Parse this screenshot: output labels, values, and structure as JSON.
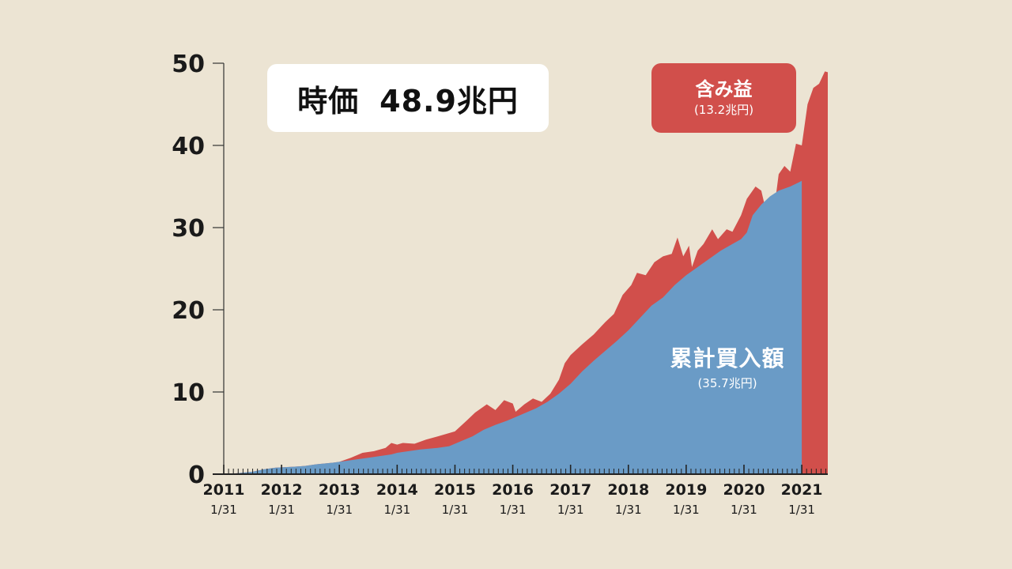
{
  "headline": {
    "label": "時価",
    "value": "48.9兆円"
  },
  "gain_box": {
    "label": "含み益",
    "value": "(13.2兆円)"
  },
  "cumulative_label": {
    "label": "累計買入額",
    "value": "(35.7兆円)"
  },
  "colors": {
    "background": "#ece4d3",
    "purchase": "#6a9bc6",
    "gain": "#d14f4b",
    "axis": "#333333"
  },
  "chart_data": {
    "type": "area",
    "title": "時価 48.9兆円",
    "xlabel": "",
    "ylabel": "",
    "ylim": [
      0,
      50
    ],
    "y_ticks": [
      "0",
      "10",
      "20",
      "30",
      "40",
      "50"
    ],
    "x_years": [
      "2011",
      "2012",
      "2013",
      "2014",
      "2015",
      "2016",
      "2017",
      "2018",
      "2019",
      "2020",
      "2021"
    ],
    "x_day_label": "1/31",
    "x_start_year": 2011,
    "x_end_year": 2021,
    "series": [
      {
        "name": "累計買入額",
        "total": "35.7兆円",
        "color": "#6a9bc6",
        "points": [
          [
            2011.0,
            0
          ],
          [
            2011.2,
            0.1
          ],
          [
            2011.5,
            0.3
          ],
          [
            2011.7,
            0.6
          ],
          [
            2011.9,
            0.8
          ],
          [
            2012.2,
            0.9
          ],
          [
            2012.4,
            1.0
          ],
          [
            2012.6,
            1.2
          ],
          [
            2012.9,
            1.4
          ],
          [
            2013.1,
            1.6
          ],
          [
            2013.3,
            1.8
          ],
          [
            2013.5,
            2.0
          ],
          [
            2013.7,
            2.2
          ],
          [
            2013.9,
            2.4
          ],
          [
            2014.0,
            2.6
          ],
          [
            2014.2,
            2.8
          ],
          [
            2014.4,
            3.0
          ],
          [
            2014.7,
            3.2
          ],
          [
            2014.9,
            3.4
          ],
          [
            2015.1,
            4.0
          ],
          [
            2015.3,
            4.6
          ],
          [
            2015.5,
            5.4
          ],
          [
            2015.7,
            6.0
          ],
          [
            2015.9,
            6.5
          ],
          [
            2016.0,
            6.8
          ],
          [
            2016.2,
            7.4
          ],
          [
            2016.4,
            8.0
          ],
          [
            2016.6,
            8.8
          ],
          [
            2016.8,
            9.8
          ],
          [
            2017.0,
            11.0
          ],
          [
            2017.2,
            12.5
          ],
          [
            2017.4,
            13.8
          ],
          [
            2017.6,
            15.0
          ],
          [
            2017.8,
            16.2
          ],
          [
            2018.0,
            17.5
          ],
          [
            2018.2,
            19.0
          ],
          [
            2018.4,
            20.5
          ],
          [
            2018.6,
            21.5
          ],
          [
            2018.8,
            23.0
          ],
          [
            2019.0,
            24.2
          ],
          [
            2019.2,
            25.2
          ],
          [
            2019.4,
            26.2
          ],
          [
            2019.6,
            27.2
          ],
          [
            2019.8,
            28.0
          ],
          [
            2019.95,
            28.6
          ],
          [
            2020.05,
            29.4
          ],
          [
            2020.15,
            31.5
          ],
          [
            2020.3,
            32.8
          ],
          [
            2020.45,
            33.8
          ],
          [
            2020.6,
            34.5
          ],
          [
            2020.8,
            35.0
          ],
          [
            2020.95,
            35.5
          ],
          [
            2021.0,
            35.7
          ]
        ]
      },
      {
        "name": "時価",
        "total": "48.9兆円",
        "color": "#d14f4b",
        "points": [
          [
            2011.0,
            0
          ],
          [
            2011.2,
            0.1
          ],
          [
            2011.5,
            0.3
          ],
          [
            2011.7,
            0.6
          ],
          [
            2011.9,
            0.8
          ],
          [
            2012.2,
            0.9
          ],
          [
            2012.4,
            1.0
          ],
          [
            2012.6,
            1.2
          ],
          [
            2012.9,
            1.4
          ],
          [
            2013.0,
            1.5
          ],
          [
            2013.2,
            2.0
          ],
          [
            2013.4,
            2.6
          ],
          [
            2013.6,
            2.8
          ],
          [
            2013.8,
            3.2
          ],
          [
            2013.9,
            3.8
          ],
          [
            2014.0,
            3.6
          ],
          [
            2014.1,
            3.8
          ],
          [
            2014.3,
            3.7
          ],
          [
            2014.5,
            4.2
          ],
          [
            2014.7,
            4.6
          ],
          [
            2014.9,
            5.0
          ],
          [
            2015.0,
            5.2
          ],
          [
            2015.2,
            6.5
          ],
          [
            2015.35,
            7.5
          ],
          [
            2015.55,
            8.5
          ],
          [
            2015.7,
            7.8
          ],
          [
            2015.85,
            9.0
          ],
          [
            2016.0,
            8.6
          ],
          [
            2016.05,
            7.6
          ],
          [
            2016.2,
            8.5
          ],
          [
            2016.35,
            9.2
          ],
          [
            2016.5,
            8.8
          ],
          [
            2016.65,
            9.8
          ],
          [
            2016.8,
            11.5
          ],
          [
            2016.9,
            13.5
          ],
          [
            2017.0,
            14.5
          ],
          [
            2017.2,
            15.8
          ],
          [
            2017.4,
            17.0
          ],
          [
            2017.6,
            18.5
          ],
          [
            2017.75,
            19.5
          ],
          [
            2017.9,
            21.8
          ],
          [
            2018.05,
            23.0
          ],
          [
            2018.15,
            24.5
          ],
          [
            2018.3,
            24.2
          ],
          [
            2018.45,
            25.8
          ],
          [
            2018.6,
            26.5
          ],
          [
            2018.75,
            26.8
          ],
          [
            2018.85,
            28.8
          ],
          [
            2018.95,
            26.5
          ],
          [
            2019.05,
            27.8
          ],
          [
            2019.1,
            25.2
          ],
          [
            2019.2,
            27.2
          ],
          [
            2019.3,
            28.0
          ],
          [
            2019.45,
            29.8
          ],
          [
            2019.55,
            28.6
          ],
          [
            2019.7,
            29.8
          ],
          [
            2019.8,
            29.5
          ],
          [
            2019.95,
            31.5
          ],
          [
            2020.05,
            33.5
          ],
          [
            2020.2,
            35.0
          ],
          [
            2020.3,
            34.5
          ],
          [
            2020.4,
            31.5
          ],
          [
            2020.5,
            31.0
          ],
          [
            2020.6,
            36.5
          ],
          [
            2020.7,
            37.5
          ],
          [
            2020.8,
            36.8
          ],
          [
            2020.9,
            40.2
          ],
          [
            2021.0,
            40.0
          ],
          [
            2021.1,
            45.0
          ],
          [
            2021.2,
            47.0
          ],
          [
            2021.3,
            47.5
          ],
          [
            2021.4,
            49.0
          ],
          [
            2021.45,
            48.9
          ]
        ]
      }
    ]
  }
}
